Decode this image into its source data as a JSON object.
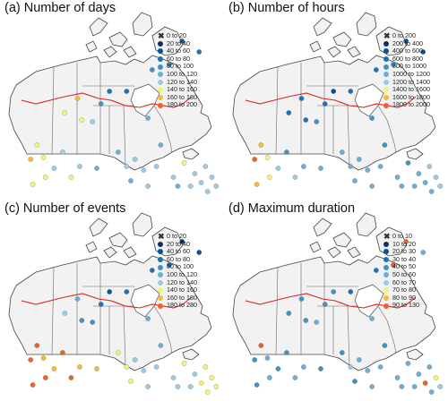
{
  "panels": [
    {
      "title": "(a) Number of days",
      "legend": [
        "0 to 20",
        "20 to 40",
        "40 to 60",
        "60 to 80",
        "80 to 100",
        "100 to 120",
        "120 to 140",
        "140 to 160",
        "160 to 180",
        "180 to 200"
      ],
      "points": [
        [
          0.33,
          0.44,
          8
        ],
        [
          0.27,
          0.52,
          7
        ],
        [
          0.35,
          0.56,
          7
        ],
        [
          0.4,
          0.57,
          6
        ],
        [
          0.44,
          0.47,
          4
        ],
        [
          0.48,
          0.4,
          3
        ],
        [
          0.56,
          0.4,
          3
        ],
        [
          0.66,
          0.55,
          5
        ],
        [
          0.72,
          0.7,
          5
        ],
        [
          0.82,
          0.12,
          2
        ],
        [
          0.9,
          0.18,
          3
        ],
        [
          0.76,
          0.25,
          4
        ],
        [
          0.68,
          0.28,
          4
        ],
        [
          0.11,
          0.78,
          8
        ],
        [
          0.14,
          0.7,
          7
        ],
        [
          0.17,
          0.77,
          7
        ],
        [
          0.22,
          0.83,
          6
        ],
        [
          0.26,
          0.74,
          6
        ],
        [
          0.34,
          0.82,
          6
        ],
        [
          0.42,
          0.83,
          5
        ],
        [
          0.52,
          0.74,
          5
        ],
        [
          0.56,
          0.82,
          6
        ],
        [
          0.6,
          0.78,
          6
        ],
        [
          0.64,
          0.84,
          6
        ],
        [
          0.7,
          0.82,
          6
        ],
        [
          0.78,
          0.88,
          6
        ],
        [
          0.83,
          0.8,
          7
        ],
        [
          0.88,
          0.86,
          6
        ],
        [
          0.93,
          0.82,
          6
        ],
        [
          0.96,
          0.88,
          6
        ],
        [
          0.98,
          0.93,
          6
        ],
        [
          0.91,
          0.91,
          6
        ],
        [
          0.94,
          0.96,
          6
        ],
        [
          0.86,
          0.93,
          6
        ],
        [
          0.8,
          0.93,
          5
        ],
        [
          0.66,
          0.93,
          6
        ],
        [
          0.58,
          0.9,
          5
        ],
        [
          0.3,
          0.88,
          7
        ],
        [
          0.18,
          0.88,
          7
        ],
        [
          0.12,
          0.92,
          7
        ]
      ]
    },
    {
      "title": "(b) Number of hours",
      "legend": [
        "0 to 200",
        "200 to 400",
        "400 to 600",
        "600 to 800",
        "800 to 1000",
        "1000 to 1200",
        "1200 to 1400",
        "1400 to 1600",
        "1600 to 1800",
        "1800 to 2000"
      ],
      "points": [
        [
          0.33,
          0.44,
          3
        ],
        [
          0.27,
          0.52,
          3
        ],
        [
          0.35,
          0.56,
          3
        ],
        [
          0.4,
          0.57,
          4
        ],
        [
          0.44,
          0.47,
          3
        ],
        [
          0.48,
          0.4,
          2
        ],
        [
          0.56,
          0.4,
          3
        ],
        [
          0.66,
          0.55,
          4
        ],
        [
          0.72,
          0.7,
          4
        ],
        [
          0.82,
          0.12,
          2
        ],
        [
          0.9,
          0.18,
          2
        ],
        [
          0.76,
          0.25,
          4
        ],
        [
          0.68,
          0.28,
          3
        ],
        [
          0.11,
          0.78,
          9
        ],
        [
          0.14,
          0.7,
          8
        ],
        [
          0.17,
          0.77,
          7
        ],
        [
          0.22,
          0.83,
          6
        ],
        [
          0.26,
          0.74,
          4
        ],
        [
          0.34,
          0.82,
          5
        ],
        [
          0.42,
          0.83,
          5
        ],
        [
          0.52,
          0.74,
          5
        ],
        [
          0.56,
          0.82,
          5
        ],
        [
          0.6,
          0.78,
          5
        ],
        [
          0.64,
          0.84,
          5
        ],
        [
          0.7,
          0.82,
          5
        ],
        [
          0.78,
          0.88,
          5
        ],
        [
          0.83,
          0.8,
          4
        ],
        [
          0.88,
          0.86,
          5
        ],
        [
          0.93,
          0.82,
          6
        ],
        [
          0.96,
          0.88,
          6
        ],
        [
          0.98,
          0.93,
          6
        ],
        [
          0.91,
          0.91,
          5
        ],
        [
          0.94,
          0.96,
          5
        ],
        [
          0.86,
          0.93,
          5
        ],
        [
          0.8,
          0.93,
          5
        ],
        [
          0.66,
          0.93,
          5
        ],
        [
          0.58,
          0.9,
          5
        ],
        [
          0.3,
          0.88,
          6
        ],
        [
          0.18,
          0.88,
          7
        ],
        [
          0.12,
          0.92,
          8
        ]
      ]
    },
    {
      "title": "(c) Number of events",
      "legend": [
        "0 to 20",
        "20 to 40",
        "40 to 60",
        "60 to 80",
        "80 to 100",
        "100 to 120",
        "120 to 140",
        "140 to 160",
        "160 to 180",
        "180 to 280"
      ],
      "points": [
        [
          0.33,
          0.44,
          5
        ],
        [
          0.27,
          0.52,
          6
        ],
        [
          0.35,
          0.56,
          4
        ],
        [
          0.4,
          0.57,
          4
        ],
        [
          0.44,
          0.47,
          3
        ],
        [
          0.48,
          0.4,
          2
        ],
        [
          0.56,
          0.4,
          3
        ],
        [
          0.66,
          0.55,
          5
        ],
        [
          0.72,
          0.7,
          5
        ],
        [
          0.82,
          0.12,
          1
        ],
        [
          0.9,
          0.18,
          2
        ],
        [
          0.76,
          0.25,
          3
        ],
        [
          0.68,
          0.28,
          3
        ],
        [
          0.11,
          0.78,
          9
        ],
        [
          0.14,
          0.7,
          9
        ],
        [
          0.17,
          0.77,
          8
        ],
        [
          0.22,
          0.83,
          8
        ],
        [
          0.26,
          0.74,
          9
        ],
        [
          0.34,
          0.82,
          8
        ],
        [
          0.42,
          0.83,
          8
        ],
        [
          0.52,
          0.74,
          7
        ],
        [
          0.56,
          0.82,
          7
        ],
        [
          0.6,
          0.78,
          6
        ],
        [
          0.64,
          0.84,
          6
        ],
        [
          0.7,
          0.82,
          6
        ],
        [
          0.78,
          0.88,
          6
        ],
        [
          0.83,
          0.8,
          7
        ],
        [
          0.88,
          0.86,
          6
        ],
        [
          0.93,
          0.82,
          7
        ],
        [
          0.96,
          0.88,
          7
        ],
        [
          0.98,
          0.93,
          7
        ],
        [
          0.91,
          0.91,
          7
        ],
        [
          0.94,
          0.96,
          7
        ],
        [
          0.86,
          0.93,
          6
        ],
        [
          0.8,
          0.93,
          6
        ],
        [
          0.66,
          0.93,
          6
        ],
        [
          0.58,
          0.9,
          7
        ],
        [
          0.3,
          0.88,
          9
        ],
        [
          0.18,
          0.88,
          9
        ],
        [
          0.12,
          0.92,
          9
        ]
      ]
    },
    {
      "title": "(d) Maximum duration",
      "legend": [
        "0 to 10",
        "10 to 20",
        "20 to 30",
        "30 to 40",
        "40 to 50",
        "50 to 60",
        "60 to 70",
        "70 to 80",
        "80 to 90",
        "90 to 130"
      ],
      "points": [
        [
          0.33,
          0.44,
          4
        ],
        [
          0.27,
          0.52,
          4
        ],
        [
          0.35,
          0.56,
          4
        ],
        [
          0.4,
          0.57,
          5
        ],
        [
          0.44,
          0.47,
          4
        ],
        [
          0.48,
          0.4,
          4
        ],
        [
          0.56,
          0.4,
          3
        ],
        [
          0.66,
          0.55,
          5
        ],
        [
          0.72,
          0.7,
          4
        ],
        [
          0.82,
          0.12,
          9
        ],
        [
          0.9,
          0.18,
          5
        ],
        [
          0.76,
          0.25,
          9
        ],
        [
          0.68,
          0.28,
          3
        ],
        [
          0.11,
          0.78,
          4
        ],
        [
          0.14,
          0.7,
          9
        ],
        [
          0.17,
          0.77,
          5
        ],
        [
          0.22,
          0.83,
          4
        ],
        [
          0.26,
          0.74,
          4
        ],
        [
          0.34,
          0.82,
          5
        ],
        [
          0.42,
          0.83,
          4
        ],
        [
          0.52,
          0.74,
          4
        ],
        [
          0.56,
          0.82,
          6
        ],
        [
          0.6,
          0.78,
          5
        ],
        [
          0.64,
          0.84,
          5
        ],
        [
          0.7,
          0.82,
          5
        ],
        [
          0.78,
          0.88,
          5
        ],
        [
          0.83,
          0.8,
          5
        ],
        [
          0.88,
          0.86,
          5
        ],
        [
          0.93,
          0.82,
          5
        ],
        [
          0.96,
          0.88,
          7
        ],
        [
          0.98,
          0.93,
          6
        ],
        [
          0.91,
          0.91,
          9
        ],
        [
          0.94,
          0.96,
          5
        ],
        [
          0.86,
          0.93,
          5
        ],
        [
          0.8,
          0.93,
          5
        ],
        [
          0.66,
          0.93,
          5
        ],
        [
          0.58,
          0.9,
          4
        ],
        [
          0.3,
          0.88,
          5
        ],
        [
          0.18,
          0.88,
          5
        ],
        [
          0.12,
          0.92,
          4
        ]
      ]
    }
  ],
  "colors": [
    "#333333",
    "#08306b",
    "#08519c",
    "#2171b5",
    "#4292c6",
    "#6baed6",
    "#9ecae1",
    "#f5f07a",
    "#f6b93b",
    "#e8632b",
    "#c8102e"
  ],
  "land_color": "#f2f2f2",
  "boundary_color": "#444444",
  "line_color": "#e02020"
}
